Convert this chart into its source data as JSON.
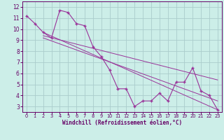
{
  "bg_color": "#cceee8",
  "line_color": "#993399",
  "grid_color": "#aacccc",
  "xlabel": "Windchill (Refroidissement éolien,°C)",
  "xlabel_color": "#660066",
  "tick_color": "#660066",
  "xlim": [
    -0.5,
    23.5
  ],
  "ylim": [
    2.5,
    12.5
  ],
  "yticks": [
    3,
    4,
    5,
    6,
    7,
    8,
    9,
    10,
    11,
    12
  ],
  "xticks": [
    0,
    1,
    2,
    3,
    4,
    5,
    6,
    7,
    8,
    9,
    10,
    11,
    12,
    13,
    14,
    15,
    16,
    17,
    18,
    19,
    20,
    21,
    22,
    23
  ],
  "main_x": [
    0,
    1,
    2,
    3,
    4,
    5,
    6,
    7,
    8,
    9,
    10,
    11,
    12,
    13,
    14,
    15,
    16,
    17,
    18,
    19,
    20,
    21,
    22,
    23
  ],
  "main_y": [
    11.2,
    10.5,
    9.7,
    9.2,
    11.7,
    11.5,
    10.5,
    10.3,
    8.4,
    7.5,
    6.3,
    4.6,
    4.6,
    3.0,
    3.5,
    3.5,
    4.2,
    3.5,
    5.2,
    5.2,
    6.5,
    4.4,
    4.0,
    2.7
  ],
  "trend1": {
    "x": [
      2,
      23
    ],
    "y": [
      9.7,
      2.7
    ]
  },
  "trend2": {
    "x": [
      2,
      23
    ],
    "y": [
      9.4,
      5.4
    ]
  },
  "trend3": {
    "x": [
      2,
      23
    ],
    "y": [
      9.2,
      3.5
    ]
  }
}
